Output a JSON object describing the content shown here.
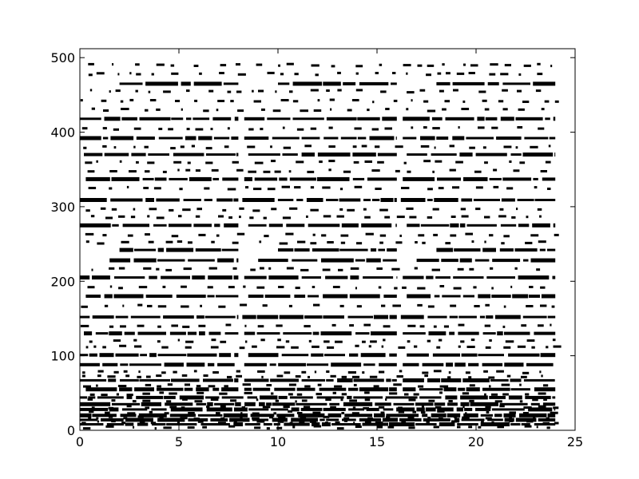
{
  "chart_data": {
    "type": "scatter",
    "title": "",
    "xlabel": "",
    "ylabel": "",
    "xlim": [
      0,
      25
    ],
    "ylim": [
      0,
      512
    ],
    "xticks": [
      0,
      5,
      10,
      15,
      20,
      25
    ],
    "yticks": [
      0,
      100,
      200,
      300,
      400,
      500
    ],
    "x_tick_labels": [
      "0",
      "5",
      "10",
      "15",
      "20",
      "25"
    ],
    "y_tick_labels": [
      "0",
      "100",
      "200",
      "300",
      "400",
      "500"
    ],
    "grid": false,
    "legend": "none",
    "marker_color": "#000000",
    "x_data_range": [
      0,
      24
    ],
    "description_of_pattern": "",
    "series": [
      {
        "values": [
          {
            "y": 465,
            "segments": [
              [
                2,
                8
              ],
              [
                10,
                16
              ],
              [
                18,
                24
              ]
            ]
          },
          {
            "y": 418,
            "segments": [
              [
                0,
                8
              ],
              [
                8.3,
                16
              ],
              [
                16.3,
                24
              ]
            ]
          },
          {
            "y": 392,
            "segments": [
              [
                0,
                8
              ],
              [
                8.3,
                16
              ],
              [
                16.3,
                24
              ]
            ]
          },
          {
            "y": 370,
            "segments": [
              [
                0.2,
                8
              ],
              [
                8.5,
                16
              ],
              [
                16.5,
                24
              ]
            ]
          },
          {
            "y": 337,
            "segments": [
              [
                0.3,
                8
              ],
              [
                8.3,
                16
              ],
              [
                16.3,
                24
              ]
            ]
          },
          {
            "y": 309,
            "segments": [
              [
                0,
                8
              ],
              [
                8.2,
                16
              ],
              [
                16.2,
                24
              ]
            ]
          },
          {
            "y": 275,
            "segments": [
              [
                0,
                8
              ],
              [
                8.5,
                16
              ],
              [
                16.5,
                24
              ]
            ]
          },
          {
            "y": 242,
            "segments": [
              [
                2,
                8
              ],
              [
                10,
                16
              ],
              [
                18,
                24
              ]
            ]
          },
          {
            "y": 228,
            "segments": [
              [
                1.5,
                8
              ],
              [
                9,
                16
              ],
              [
                17,
                24
              ]
            ]
          },
          {
            "y": 205,
            "segments": [
              [
                0,
                8
              ],
              [
                8.3,
                16
              ],
              [
                16.3,
                24
              ]
            ]
          },
          {
            "y": 180,
            "segments": [
              [
                0.3,
                8
              ],
              [
                8.5,
                16
              ],
              [
                16.5,
                24
              ]
            ]
          },
          {
            "y": 152,
            "segments": [
              [
                0,
                8
              ],
              [
                8.2,
                16
              ],
              [
                16.2,
                24
              ]
            ]
          },
          {
            "y": 130,
            "segments": [
              [
                0.2,
                8
              ],
              [
                8.3,
                16
              ],
              [
                16.3,
                24
              ]
            ]
          },
          {
            "y": 101,
            "segments": [
              [
                0,
                8
              ],
              [
                8.5,
                16
              ],
              [
                16.5,
                24
              ]
            ]
          },
          {
            "y": 88,
            "segments": [
              [
                0,
                8
              ],
              [
                8.3,
                16
              ],
              [
                16.3,
                24
              ]
            ]
          },
          {
            "y": 67,
            "segments": [
              [
                0,
                8
              ],
              [
                8.3,
                16
              ],
              [
                16.3,
                24
              ]
            ]
          },
          {
            "y": 55,
            "segments": [
              [
                0.3,
                8
              ],
              [
                8.3,
                16
              ],
              [
                16.3,
                24
              ]
            ]
          },
          {
            "y": 44,
            "segments": [
              [
                0,
                24
              ]
            ]
          },
          {
            "y": 35,
            "segments": [
              [
                0,
                24
              ]
            ]
          },
          {
            "y": 28,
            "segments": [
              [
                0,
                24
              ]
            ]
          },
          {
            "y": 20,
            "segments": [
              [
                0,
                24
              ]
            ]
          },
          {
            "y": 14,
            "segments": [
              [
                0,
                24
              ]
            ]
          },
          {
            "y": 8,
            "segments": [
              [
                0,
                24
              ]
            ]
          }
        ]
      }
    ],
    "scattered_rows": [
      490,
      478,
      455,
      442,
      430,
      405,
      380,
      360,
      348,
      325,
      296,
      286,
      262,
      252,
      216,
      192,
      167,
      140,
      120,
      112,
      78,
      72,
      60,
      49,
      40,
      31,
      24,
      17,
      11,
      4
    ]
  }
}
